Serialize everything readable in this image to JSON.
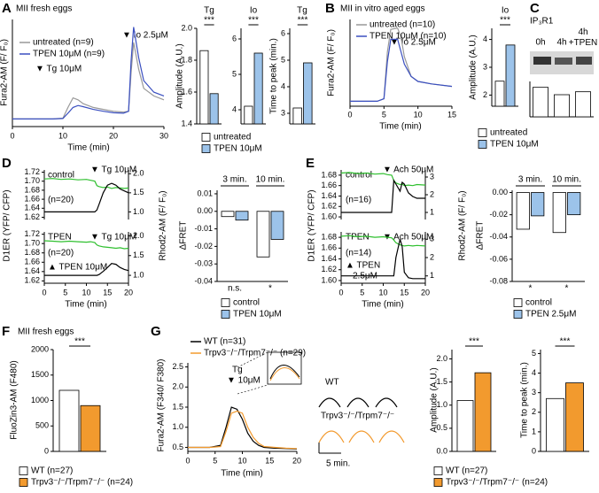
{
  "chart_data": [
    {
      "type": "line",
      "panel_label": "A",
      "title": "MII fresh eggs",
      "xlabel": "Time (min)",
      "ylabel": "Fura2-AM (F/ F₀)",
      "legend": true,
      "x": [
        0,
        2,
        4,
        6,
        8,
        10,
        11,
        12,
        13,
        14,
        16,
        18,
        20,
        22,
        23,
        23.5,
        24,
        25,
        26,
        28,
        30
      ],
      "xlim": [
        0,
        30
      ],
      "xticks": [
        0,
        10,
        20,
        30
      ],
      "ylim": [
        0.8,
        3.6
      ],
      "series": [
        {
          "name": "untreated (n=9)",
          "color": "#999999",
          "values": [
            1,
            1,
            1,
            1,
            1,
            1.02,
            1.3,
            1.55,
            1.5,
            1.4,
            1.3,
            1.25,
            1.2,
            1.18,
            1.2,
            2.2,
            3.0,
            2.3,
            1.8,
            1.6,
            1.5
          ]
        },
        {
          "name": "TPEN 10μM (n=9)",
          "color": "#3a4fc0",
          "values": [
            1,
            1,
            1,
            1,
            1,
            1.01,
            1.15,
            1.3,
            1.35,
            1.32,
            1.25,
            1.2,
            1.16,
            1.15,
            1.2,
            2.5,
            3.4,
            2.6,
            2.0,
            1.7,
            1.6
          ]
        }
      ],
      "annotations": [
        "▼ Tg 10μM",
        "▼ Io 2.5μM"
      ]
    },
    {
      "type": "bar",
      "title": "Tg",
      "ylabel": "Amplitude (A.U.)",
      "ylim": [
        1.4,
        2.0
      ],
      "yticks": [
        1.4,
        1.6,
        1.8,
        {
          "value": 2,
          "label": "2.0"
        }
      ],
      "series": [
        {
          "color": "#ffffff",
          "values": [
            1.86
          ]
        },
        {
          "color": "#9cc3ea",
          "values": [
            1.59
          ]
        }
      ],
      "significance": [
        "***"
      ]
    },
    {
      "type": "bar",
      "title": "Io",
      "ylim": [
        3.6,
        6.3
      ],
      "yticks": [
        4,
        5,
        6
      ],
      "legend": true,
      "series": [
        {
          "name": "untreated",
          "color": "#ffffff",
          "values": [
            4.1
          ]
        },
        {
          "name": "TPEN 10μM",
          "color": "#9cc3ea",
          "values": [
            5.6
          ]
        }
      ],
      "significance": [
        "***"
      ]
    },
    {
      "type": "bar",
      "title": "Tg",
      "ylabel": "Time to peak (min.)",
      "ylim": [
        2.6,
        6.2
      ],
      "yticks": [
        3,
        4,
        5,
        6
      ],
      "series": [
        {
          "color": "#ffffff",
          "values": [
            3.2
          ]
        },
        {
          "color": "#9cc3ea",
          "values": [
            4.9
          ]
        }
      ],
      "significance": [
        "***"
      ]
    },
    {
      "type": "line",
      "panel_label": "B",
      "title": "MII in vitro aged eggs",
      "xlabel": "Time (min)",
      "ylabel": "Fura2-AM (F/ F₀)",
      "legend": true,
      "x": [
        0,
        2,
        4,
        5,
        5.5,
        6,
        7,
        7.5,
        8,
        9,
        10,
        12,
        15
      ],
      "xlim": [
        0,
        15
      ],
      "xticks": [
        0,
        5,
        10,
        15
      ],
      "ylim": [
        0.8,
        4.3
      ],
      "series": [
        {
          "name": "untreated (n=10)",
          "color": "#999999",
          "values": [
            1,
            1,
            1,
            1.1,
            3.0,
            3.9,
            3.95,
            3.6,
            2.8,
            2.0,
            1.8,
            1.7,
            1.6
          ]
        },
        {
          "name": "TPEN 10μM (n=10)",
          "color": "#3a4fc0",
          "values": [
            1,
            1,
            1,
            1.1,
            2.6,
            3.5,
            3.5,
            3.0,
            2.5,
            2.0,
            1.8,
            1.7,
            1.6
          ]
        }
      ],
      "annotations": [
        "▼ Io 2.5μM"
      ]
    },
    {
      "type": "bar",
      "title": "Io",
      "ylabel": "Amplitude (A.U.)",
      "ylim": [
        1.6,
        4.4
      ],
      "yticks": [
        2,
        3,
        4
      ],
      "legend": true,
      "series": [
        {
          "name": "untreated",
          "color": "#ffffff",
          "values": [
            2.5
          ]
        },
        {
          "name": "TPEN 10μM",
          "color": "#9cc3ea",
          "values": [
            3.8
          ]
        }
      ],
      "significance": [
        "***"
      ]
    },
    {
      "type": "bar",
      "panel_label": "C",
      "title": "IP₃R1",
      "categories": [
        "0h",
        "4h",
        "4h +TPEN"
      ],
      "ylim": [
        0,
        1.2
      ],
      "series": [
        {
          "color": "#ffffff",
          "values": [
            1.0,
            0.75,
            0.85
          ]
        }
      ]
    },
    {
      "type": "line",
      "panel_label": "D",
      "ylabel": "D1ER (YFP/ CFP)",
      "y2label": "Rhod2-AM (F/ F₀)",
      "x": [
        0,
        2,
        4,
        6,
        8,
        10,
        11,
        12,
        12.5,
        13,
        14,
        15,
        16,
        17,
        18,
        19,
        20
      ],
      "xlim": [
        0,
        20
      ],
      "ylim": [
        1.615,
        1.725
      ],
      "yticks": [
        1.62,
        1.64,
        1.66,
        1.68,
        {
          "value": 1.7,
          "label": "1.70"
        },
        1.72
      ],
      "y2lim": [
        0.8,
        2.1
      ],
      "y2ticks": [
        {
          "value": 1,
          "label": "1.0"
        },
        1.5,
        {
          "value": 2,
          "label": "2.0"
        }
      ],
      "series": [
        {
          "color": "#2fc02f",
          "values": [
            1.705,
            1.706,
            1.704,
            1.705,
            1.703,
            1.704,
            1.702,
            1.7,
            1.69,
            1.688,
            1.686,
            1.687,
            1.684,
            1.686,
            1.685,
            1.684,
            1.685
          ]
        },
        {
          "color": "#000000",
          "axis": "y2",
          "values": [
            1,
            1,
            1,
            1,
            1,
            1,
            1,
            1,
            1.05,
            1.2,
            1.5,
            1.7,
            1.75,
            1.7,
            1.6,
            1.55,
            1.5
          ]
        }
      ],
      "annotations": [
        "control",
        "(n=20)",
        "▼ Tg 10μM"
      ]
    },
    {
      "type": "line",
      "xlabel": "Time (min)",
      "x": [
        0,
        2,
        4,
        6,
        8,
        10,
        11,
        12,
        12.5,
        13,
        14,
        15,
        16,
        17,
        18,
        19,
        20
      ],
      "xlim": [
        0,
        20
      ],
      "xticks": [
        0,
        5,
        10,
        15,
        20
      ],
      "ylim": [
        1.615,
        1.725
      ],
      "yticks": [
        1.62,
        1.64,
        1.66,
        1.68,
        {
          "value": 1.7,
          "label": "1.70"
        },
        1.72
      ],
      "y2lim": [
        0.8,
        2.1
      ],
      "y2ticks": [
        {
          "value": 1,
          "label": "1.0"
        },
        1.5,
        {
          "value": 2,
          "label": "2.0"
        }
      ],
      "series": [
        {
          "color": "#2fc02f",
          "values": [
            1.706,
            1.705,
            1.704,
            1.705,
            1.704,
            1.703,
            1.704,
            1.702,
            1.697,
            1.695,
            1.693,
            1.692,
            1.691,
            1.69,
            1.691,
            1.689,
            1.69
          ]
        },
        {
          "color": "#000000",
          "axis": "y2",
          "values": [
            1,
            1,
            1,
            1,
            1,
            1,
            1,
            1,
            1,
            1.02,
            1.1,
            1.2,
            1.3,
            1.28,
            1.2,
            1.15,
            1.12
          ]
        }
      ],
      "annotations": [
        "TPEN",
        "(n=20)",
        "▼ Tg 10μM",
        "▲ TPEN 10μM"
      ]
    },
    {
      "type": "bar",
      "ylabel": "ΔFRET",
      "legend": true,
      "categories": [
        "3 min.",
        "10 min."
      ],
      "ylim": [
        -0.04,
        0.012
      ],
      "yticks": [
        -0.04,
        -0.03,
        -0.02,
        -0.01,
        {
          "value": 0,
          "label": "0.00"
        },
        0.01
      ],
      "series": [
        {
          "name": "control",
          "color": "#ffffff",
          "values": [
            -0.003,
            -0.026
          ]
        },
        {
          "name": "TPEN 10μM",
          "color": "#9cc3ea",
          "values": [
            -0.005,
            -0.016
          ]
        }
      ],
      "significance": [
        "n.s.",
        "*"
      ]
    },
    {
      "type": "line",
      "panel_label": "E",
      "ylabel": "D1ER (YFP/ CFP)",
      "y2label": "Rhod2-AM (F/ F₀)",
      "x": [
        0,
        2,
        4,
        6,
        8,
        10,
        11,
        12,
        12.5,
        13,
        14,
        14.5,
        15,
        16,
        17,
        18,
        20
      ],
      "xlim": [
        0,
        20
      ],
      "ylim": [
        1.595,
        1.69
      ],
      "yticks": [
        {
          "value": 1.6,
          "label": "1.60"
        },
        1.62,
        1.64,
        1.66,
        1.68
      ],
      "y2lim": [
        0.6,
        3.4
      ],
      "y2ticks": [
        1,
        2,
        3
      ],
      "series": [
        {
          "color": "#2fc02f",
          "values": [
            1.684,
            1.685,
            1.683,
            1.684,
            1.682,
            1.683,
            1.681,
            1.68,
            1.67,
            1.665,
            1.662,
            1.663,
            1.66,
            1.661,
            1.66,
            1.662,
            1.661
          ]
        },
        {
          "color": "#000000",
          "axis": "y2",
          "values": [
            1,
            1,
            1,
            1,
            1,
            1,
            1,
            1,
            2.8,
            2.6,
            2.2,
            2.7,
            2.6,
            2.1,
            1.9,
            1.8,
            1.8
          ]
        }
      ],
      "annotations": [
        "control",
        "(n=16)",
        "▼ Ach 50μM"
      ]
    },
    {
      "type": "line",
      "xlabel": "Time (min)",
      "x": [
        0,
        2,
        4,
        6,
        8,
        10,
        11,
        12,
        12.5,
        13,
        14,
        14.5,
        15,
        16,
        17,
        18,
        20
      ],
      "xlim": [
        0,
        20
      ],
      "xticks": [
        0,
        5,
        10,
        15,
        20
      ],
      "ylim": [
        1.595,
        1.69
      ],
      "yticks": [
        {
          "value": 1.6,
          "label": "1.60"
        },
        1.62,
        1.64,
        1.66,
        1.68
      ],
      "y2lim": [
        0.6,
        3.4
      ],
      "y2ticks": [
        1,
        2,
        3
      ],
      "series": [
        {
          "color": "#2fc02f",
          "values": [
            1.682,
            1.683,
            1.681,
            1.682,
            1.68,
            1.681,
            1.68,
            1.679,
            1.675,
            1.67,
            1.666,
            1.665,
            1.664,
            1.665,
            1.664,
            1.665,
            1.664
          ]
        },
        {
          "color": "#000000",
          "axis": "y2",
          "values": [
            1,
            1,
            1,
            1,
            1,
            1,
            1,
            1,
            1,
            2.0,
            3.0,
            2.6,
            1.2,
            0.9,
            0.85,
            0.85,
            0.85
          ]
        }
      ],
      "annotations": [
        "TPEN",
        "(n=14)",
        "▼ Ach 50μM",
        "▲ TPEN",
        "2.5μM"
      ]
    },
    {
      "type": "bar",
      "ylabel": "ΔFRET",
      "legend": true,
      "categories": [
        "3 min.",
        "10 min."
      ],
      "ylim": [
        -0.08,
        0.002
      ],
      "yticks": [
        -0.08,
        -0.06,
        -0.04,
        -0.02,
        {
          "value": 0,
          "label": "0.00"
        }
      ],
      "series": [
        {
          "name": "control",
          "color": "#ffffff",
          "values": [
            -0.033,
            -0.036
          ]
        },
        {
          "name": "TPEN 2.5μM",
          "color": "#9cc3ea",
          "values": [
            -0.021,
            -0.02
          ]
        }
      ],
      "significance": [
        "*",
        "*"
      ]
    },
    {
      "type": "bar",
      "panel_label": "F",
      "title": "MII fresh eggs",
      "ylabel": "FluoZin3-AM (F480)",
      "legend": true,
      "ylim": [
        0,
        2000
      ],
      "yticks": [
        0,
        500,
        1000,
        1500,
        2000
      ],
      "series": [
        {
          "name": "WT (n=27)",
          "color": "#ffffff",
          "values": [
            1200
          ]
        },
        {
          "name": "Trpv3⁻/⁻/Trpm7⁻/⁻ (n=24)",
          "color": "#f29a2e",
          "values": [
            900
          ]
        }
      ],
      "significance": [
        "***"
      ]
    },
    {
      "type": "line",
      "panel_label": "G",
      "xlabel": "Time (min)",
      "ylabel": "Fura2-AM (F340/ F380)",
      "legend": true,
      "x": [
        0,
        2,
        4,
        6,
        7,
        8,
        9,
        10,
        11,
        12,
        13,
        14,
        16,
        18,
        20
      ],
      "xlim": [
        0,
        20
      ],
      "xticks": [
        0,
        5,
        10,
        15,
        20
      ],
      "ylim": [
        0.4,
        2.6
      ],
      "yticks": [
        0.5,
        {
          "value": 1,
          "label": "1.0"
        },
        1.5,
        {
          "value": 2,
          "label": "2.0"
        },
        2.5
      ],
      "series": [
        {
          "name": "WT (n=31)",
          "color": "#000000",
          "values": [
            0.5,
            0.5,
            0.5,
            0.55,
            1.0,
            1.5,
            1.45,
            1.2,
            0.85,
            0.65,
            0.55,
            0.5,
            0.48,
            0.47,
            0.46
          ]
        },
        {
          "name": "Trpv3⁻/⁻/Trpm7⁻/⁻ (n=29)",
          "color": "#f29a2e",
          "values": [
            0.5,
            0.5,
            0.5,
            0.52,
            0.9,
            1.35,
            1.4,
            1.35,
            1.0,
            0.75,
            0.6,
            0.52,
            0.5,
            0.48,
            0.47
          ]
        }
      ],
      "annotations": [
        "Tg",
        "▼ 10μM",
        "WT",
        "Trpv3⁻/⁻/Trpm7⁻/⁻",
        "5 min."
      ]
    },
    {
      "type": "bar",
      "ylabel": "Amplitude (A.U.)",
      "ylim": [
        0,
        2.2
      ],
      "yticks": [
        {
          "value": 0,
          "label": "0.0"
        },
        0.5,
        {
          "value": 1,
          "label": "1.0"
        },
        1.5,
        {
          "value": 2,
          "label": "2.0"
        }
      ],
      "series": [
        {
          "color": "#ffffff",
          "values": [
            1.1
          ]
        },
        {
          "color": "#f29a2e",
          "values": [
            1.7
          ]
        }
      ],
      "significance": [
        "***"
      ]
    },
    {
      "type": "bar",
      "ylabel": "Time to peak (min.)",
      "legend": true,
      "ylim": [
        0,
        5.2
      ],
      "yticks": [
        0,
        1,
        2,
        3,
        4,
        5
      ],
      "series": [
        {
          "name": "WT (n=27)",
          "color": "#ffffff",
          "values": [
            2.7
          ]
        },
        {
          "name": "Trpv3⁻/⁻/Trpm7⁻/⁻ (n=24)",
          "color": "#f29a2e",
          "values": [
            3.5
          ]
        }
      ],
      "significance": [
        "***"
      ]
    }
  ]
}
